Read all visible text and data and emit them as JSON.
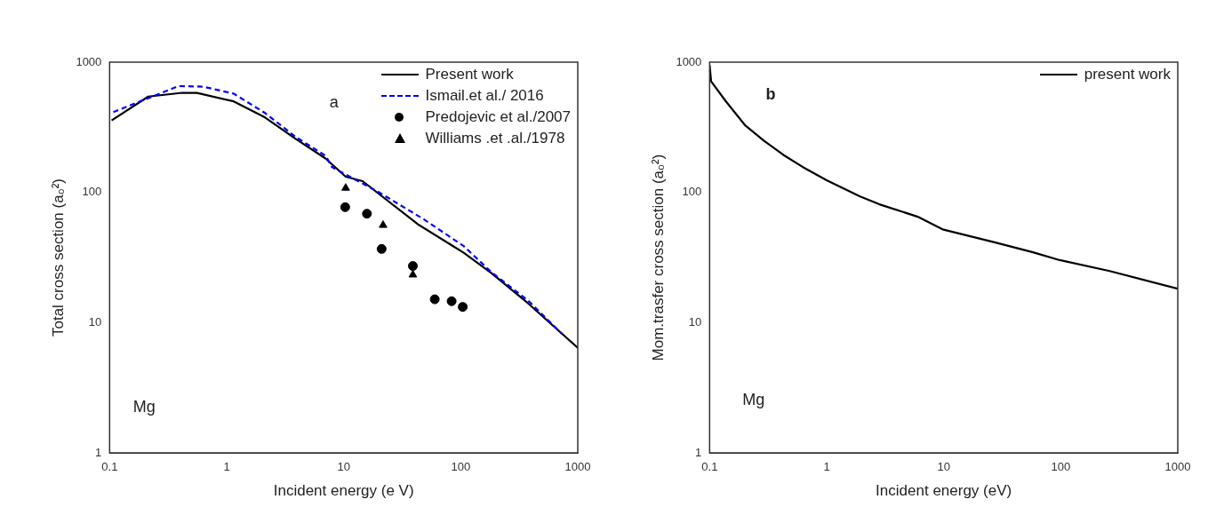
{
  "chart_data": [
    {
      "type": "line",
      "xlabel": "Incident energy (e V)",
      "ylabel": "Total cross section (a₀²)",
      "log": "xy",
      "xlim": [
        0.1,
        1000
      ],
      "xticks": [
        0.1,
        1,
        10,
        100,
        1000
      ],
      "ylim": [
        1,
        1000
      ],
      "yticks": [
        1,
        10,
        100,
        1000
      ],
      "legend": "top right",
      "annotations": [
        "a",
        "Mg"
      ],
      "series": [
        {
          "name": "Present work",
          "type": "line",
          "color": "#000000",
          "line_style": "solid",
          "marker": "none",
          "x": [
            0.104,
            0.214,
            0.418,
            0.557,
            1.15,
            2.13,
            3.86,
            7.0,
            10.4,
            14.5,
            42.9,
            106,
            182,
            375,
            1000
          ],
          "values": [
            357,
            544,
            582,
            580,
            500,
            376,
            259,
            182,
            132,
            122,
            57,
            34.4,
            24.1,
            14.1,
            6.4
          ]
        },
        {
          "name": "Ismail.et al./ 2016",
          "type": "line",
          "color": "#0000ff",
          "line_style": "dashed",
          "marker": "none",
          "x": [
            0.104,
            0.388,
            0.632,
            1.15,
            2.13,
            3.86,
            7.0,
            7.96,
            19.7,
            48.6,
            106,
            182,
            375,
            733
          ],
          "values": [
            409,
            655,
            648,
            573,
            407,
            268,
            191,
            156,
            101,
            62,
            38.7,
            24.5,
            14.8,
            8.2
          ]
        },
        {
          "name": "Predojevic et al./2007",
          "type": "scatter",
          "color": "#000000",
          "marker": "circle",
          "x": [
            10.3,
            15.8,
            21.1,
            39,
            60,
            83.6,
            104
          ],
          "values": [
            77,
            68.6,
            36.8,
            27.2,
            15.1,
            14.6,
            13.2
          ]
        },
        {
          "name": "Williams .et .al./1978",
          "type": "scatter",
          "color": "#000000",
          "marker": "triangle",
          "x": [
            10.4,
            21.7,
            39
          ],
          "values": [
            108,
            56,
            23.3
          ]
        }
      ]
    },
    {
      "type": "line",
      "xlabel": "Incident energy (eV)",
      "ylabel": "Mom.trasfer cross section (a₀²)",
      "log": "xy",
      "xlim": [
        0.1,
        1000
      ],
      "xticks": [
        0.1,
        1,
        10,
        100,
        1000
      ],
      "ylim": [
        1,
        1000
      ],
      "yticks": [
        1,
        10,
        100,
        1000
      ],
      "legend": "top right",
      "annotations": [
        "b",
        "Mg"
      ],
      "series": [
        {
          "name": "present work",
          "type": "line",
          "color": "#000000",
          "line_style": "solid",
          "marker": "none",
          "x": [
            0.1,
            0.103,
            0.137,
            0.2,
            0.292,
            0.427,
            0.622,
            1.0,
            1.93,
            2.82,
            6.0,
            9.8,
            27.2,
            58,
            98,
            262,
            1000
          ],
          "values": [
            950,
            713,
            503,
            329,
            249,
            194,
            157,
            124,
            93,
            81,
            65,
            52,
            41.4,
            34.7,
            30.2,
            24.9,
            18.2
          ]
        }
      ]
    }
  ]
}
